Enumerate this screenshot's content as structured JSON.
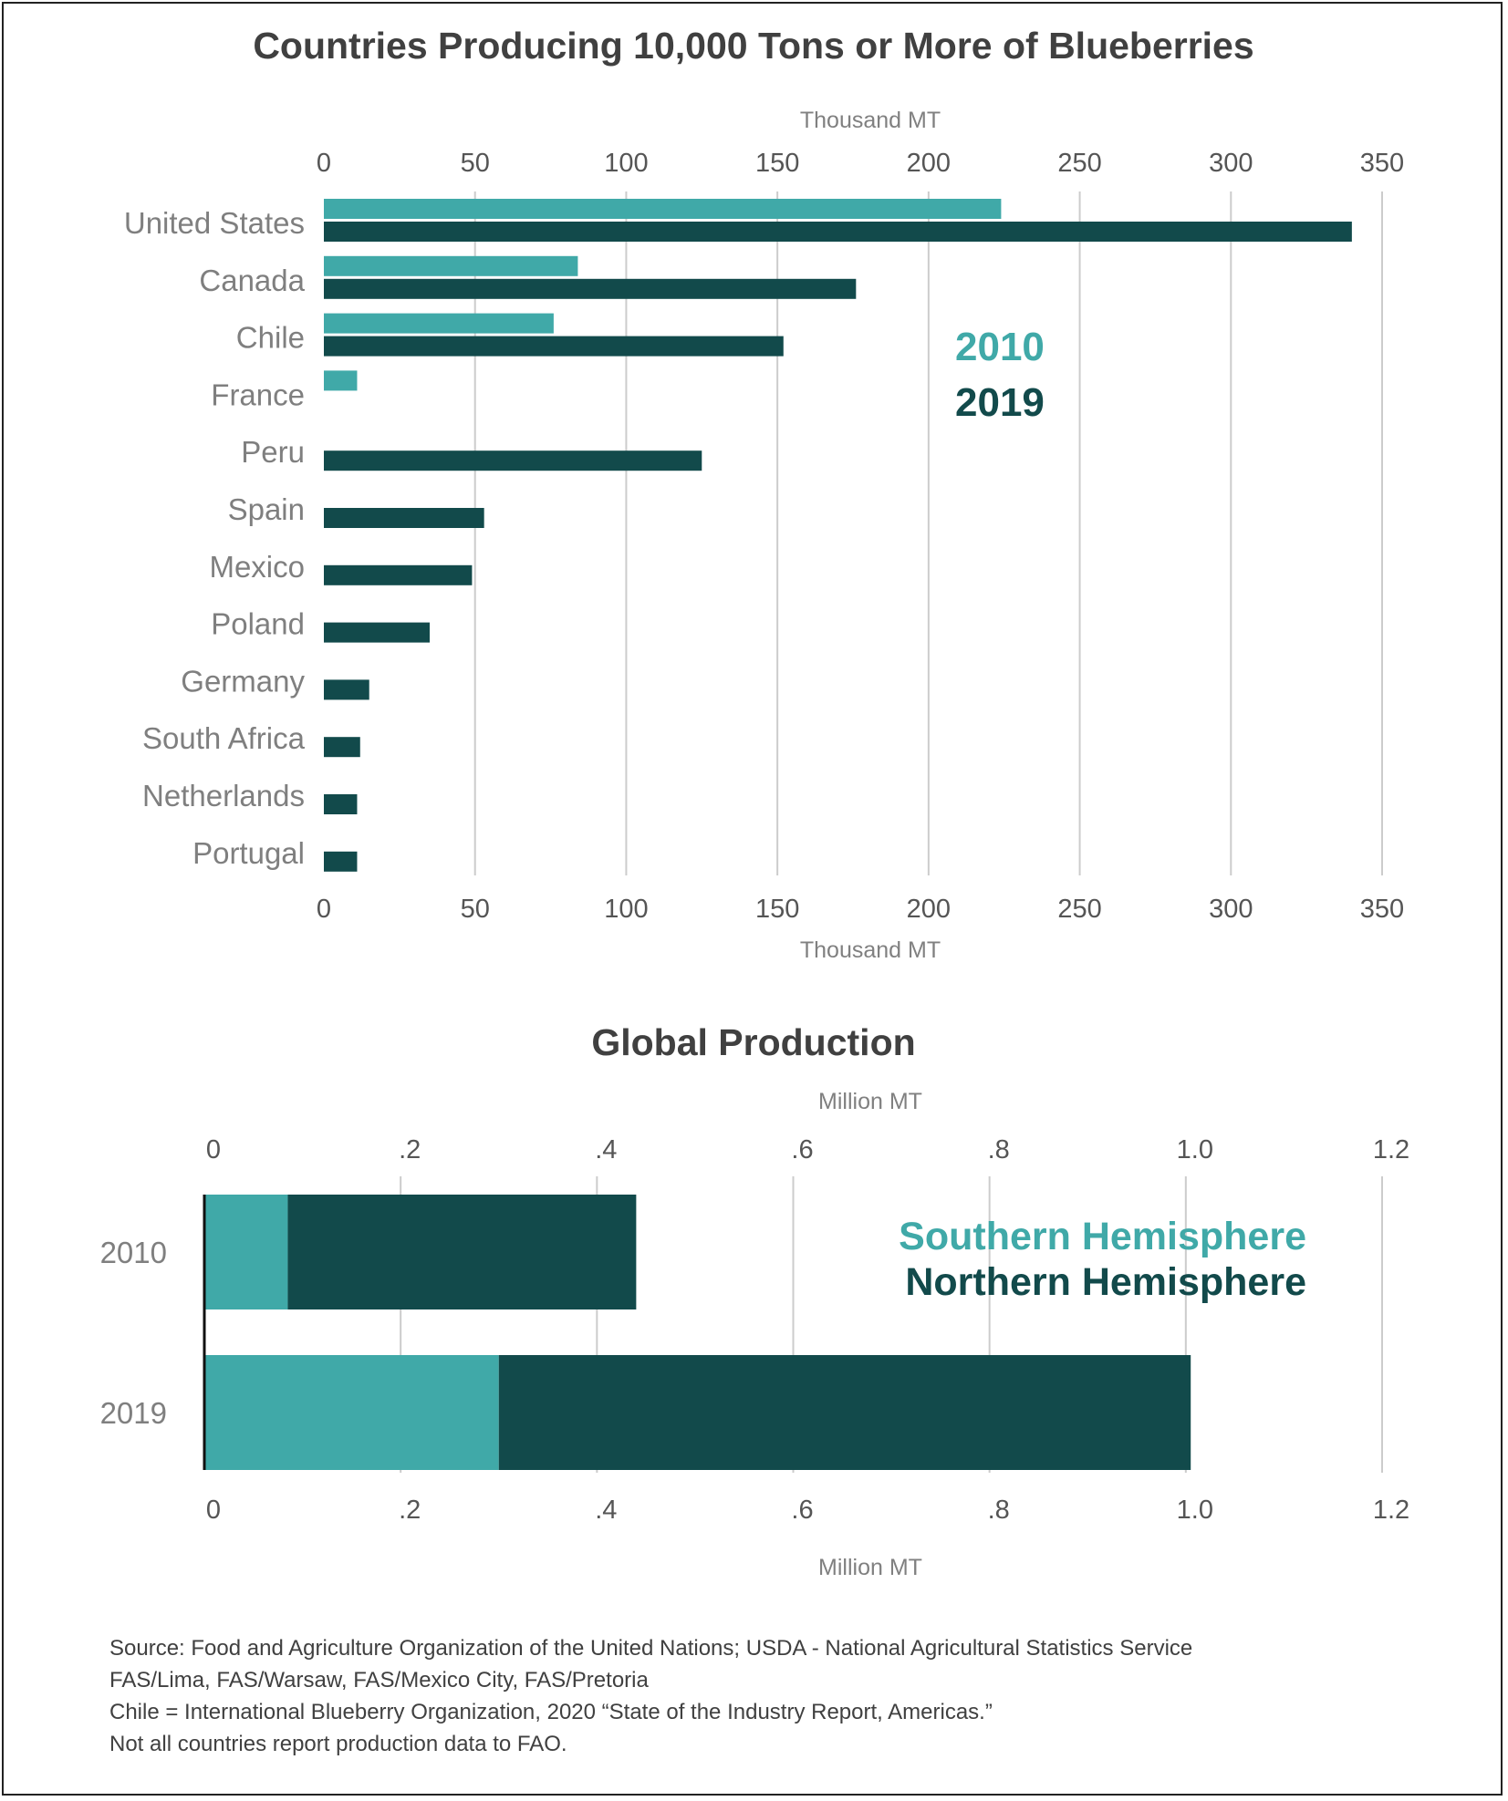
{
  "chart_data": [
    {
      "type": "bar",
      "orientation": "horizontal",
      "title": "Countries Producing 10,000 Tons or More of Blueberries",
      "xlabel": "Thousand MT",
      "xlim": [
        0,
        350
      ],
      "ticks": [
        0,
        50,
        100,
        150,
        200,
        250,
        300,
        350
      ],
      "tick_labels": [
        "0",
        "50",
        "100",
        "150",
        "200",
        "250",
        "300",
        "350"
      ],
      "grid": true,
      "legend_position": "right",
      "categories": [
        "United States",
        "Canada",
        "Chile",
        "France",
        "Peru",
        "Spain",
        "Mexico",
        "Poland",
        "Germany",
        "South Africa",
        "Netherlands",
        "Portugal"
      ],
      "series": [
        {
          "name": "2010",
          "color": "#40a9a8",
          "values": [
            224,
            84,
            76,
            11,
            null,
            null,
            null,
            null,
            null,
            null,
            null,
            null
          ]
        },
        {
          "name": "2019",
          "color": "#124a4b",
          "values": [
            340,
            176,
            152,
            null,
            125,
            53,
            49,
            35,
            15,
            12,
            11,
            11
          ]
        }
      ]
    },
    {
      "type": "bar",
      "orientation": "horizontal",
      "stacked": true,
      "title": "Global Production",
      "xlabel": "Million MT",
      "xlim": [
        0,
        1.2
      ],
      "ticks": [
        0,
        0.2,
        0.4,
        0.6,
        0.8,
        1.0,
        1.2
      ],
      "tick_labels": [
        "0",
        ".2",
        ".4",
        ".6",
        ".8",
        "1.0",
        "1.2"
      ],
      "grid": true,
      "legend_position": "right",
      "categories": [
        "2010",
        "2019"
      ],
      "series": [
        {
          "name": "Southern Hemisphere",
          "color": "#40a9a8",
          "values": [
            0.085,
            0.3
          ]
        },
        {
          "name": "Northern Hemisphere",
          "color": "#124a4b",
          "values": [
            0.355,
            0.705
          ]
        }
      ]
    }
  ],
  "sources": [
    "Source:  Food and Agriculture Organization of the United Nations; USDA - National Agricultural Statistics Service",
    "FAS/Lima, FAS/Warsaw, FAS/Mexico City, FAS/Pretoria",
    "Chile = International Blueberry Organization, 2020 “State of the Industry Report, Americas.”",
    "Not all countries report production data to FAO."
  ]
}
